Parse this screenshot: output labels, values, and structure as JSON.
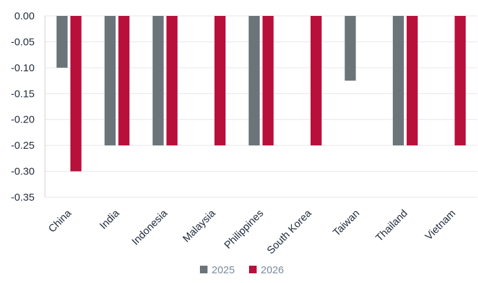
{
  "chart_data": {
    "type": "bar",
    "categories": [
      "China",
      "India",
      "Indonesia",
      "Malaysia",
      "Philippines",
      "South Korea",
      "Taiwan",
      "Thailand",
      "Vietnam"
    ],
    "series": [
      {
        "name": "2025",
        "color": "#6b7479",
        "values": [
          -0.1,
          -0.25,
          -0.25,
          null,
          -0.25,
          null,
          -0.125,
          -0.25,
          null
        ]
      },
      {
        "name": "2026",
        "color": "#b8103b",
        "values": [
          -0.3,
          -0.25,
          -0.25,
          -0.25,
          -0.25,
          -0.25,
          null,
          -0.25,
          -0.25
        ]
      }
    ],
    "ylim": [
      -0.35,
      0.0
    ],
    "yticks": [
      "0.00",
      "-0.05",
      "-0.10",
      "-0.15",
      "-0.20",
      "-0.25",
      "-0.30",
      "-0.35"
    ],
    "ytick_values": [
      0.0,
      -0.05,
      -0.1,
      -0.15,
      -0.2,
      -0.25,
      -0.3,
      -0.35
    ],
    "grid": true,
    "legend_position": "bottom-center"
  }
}
